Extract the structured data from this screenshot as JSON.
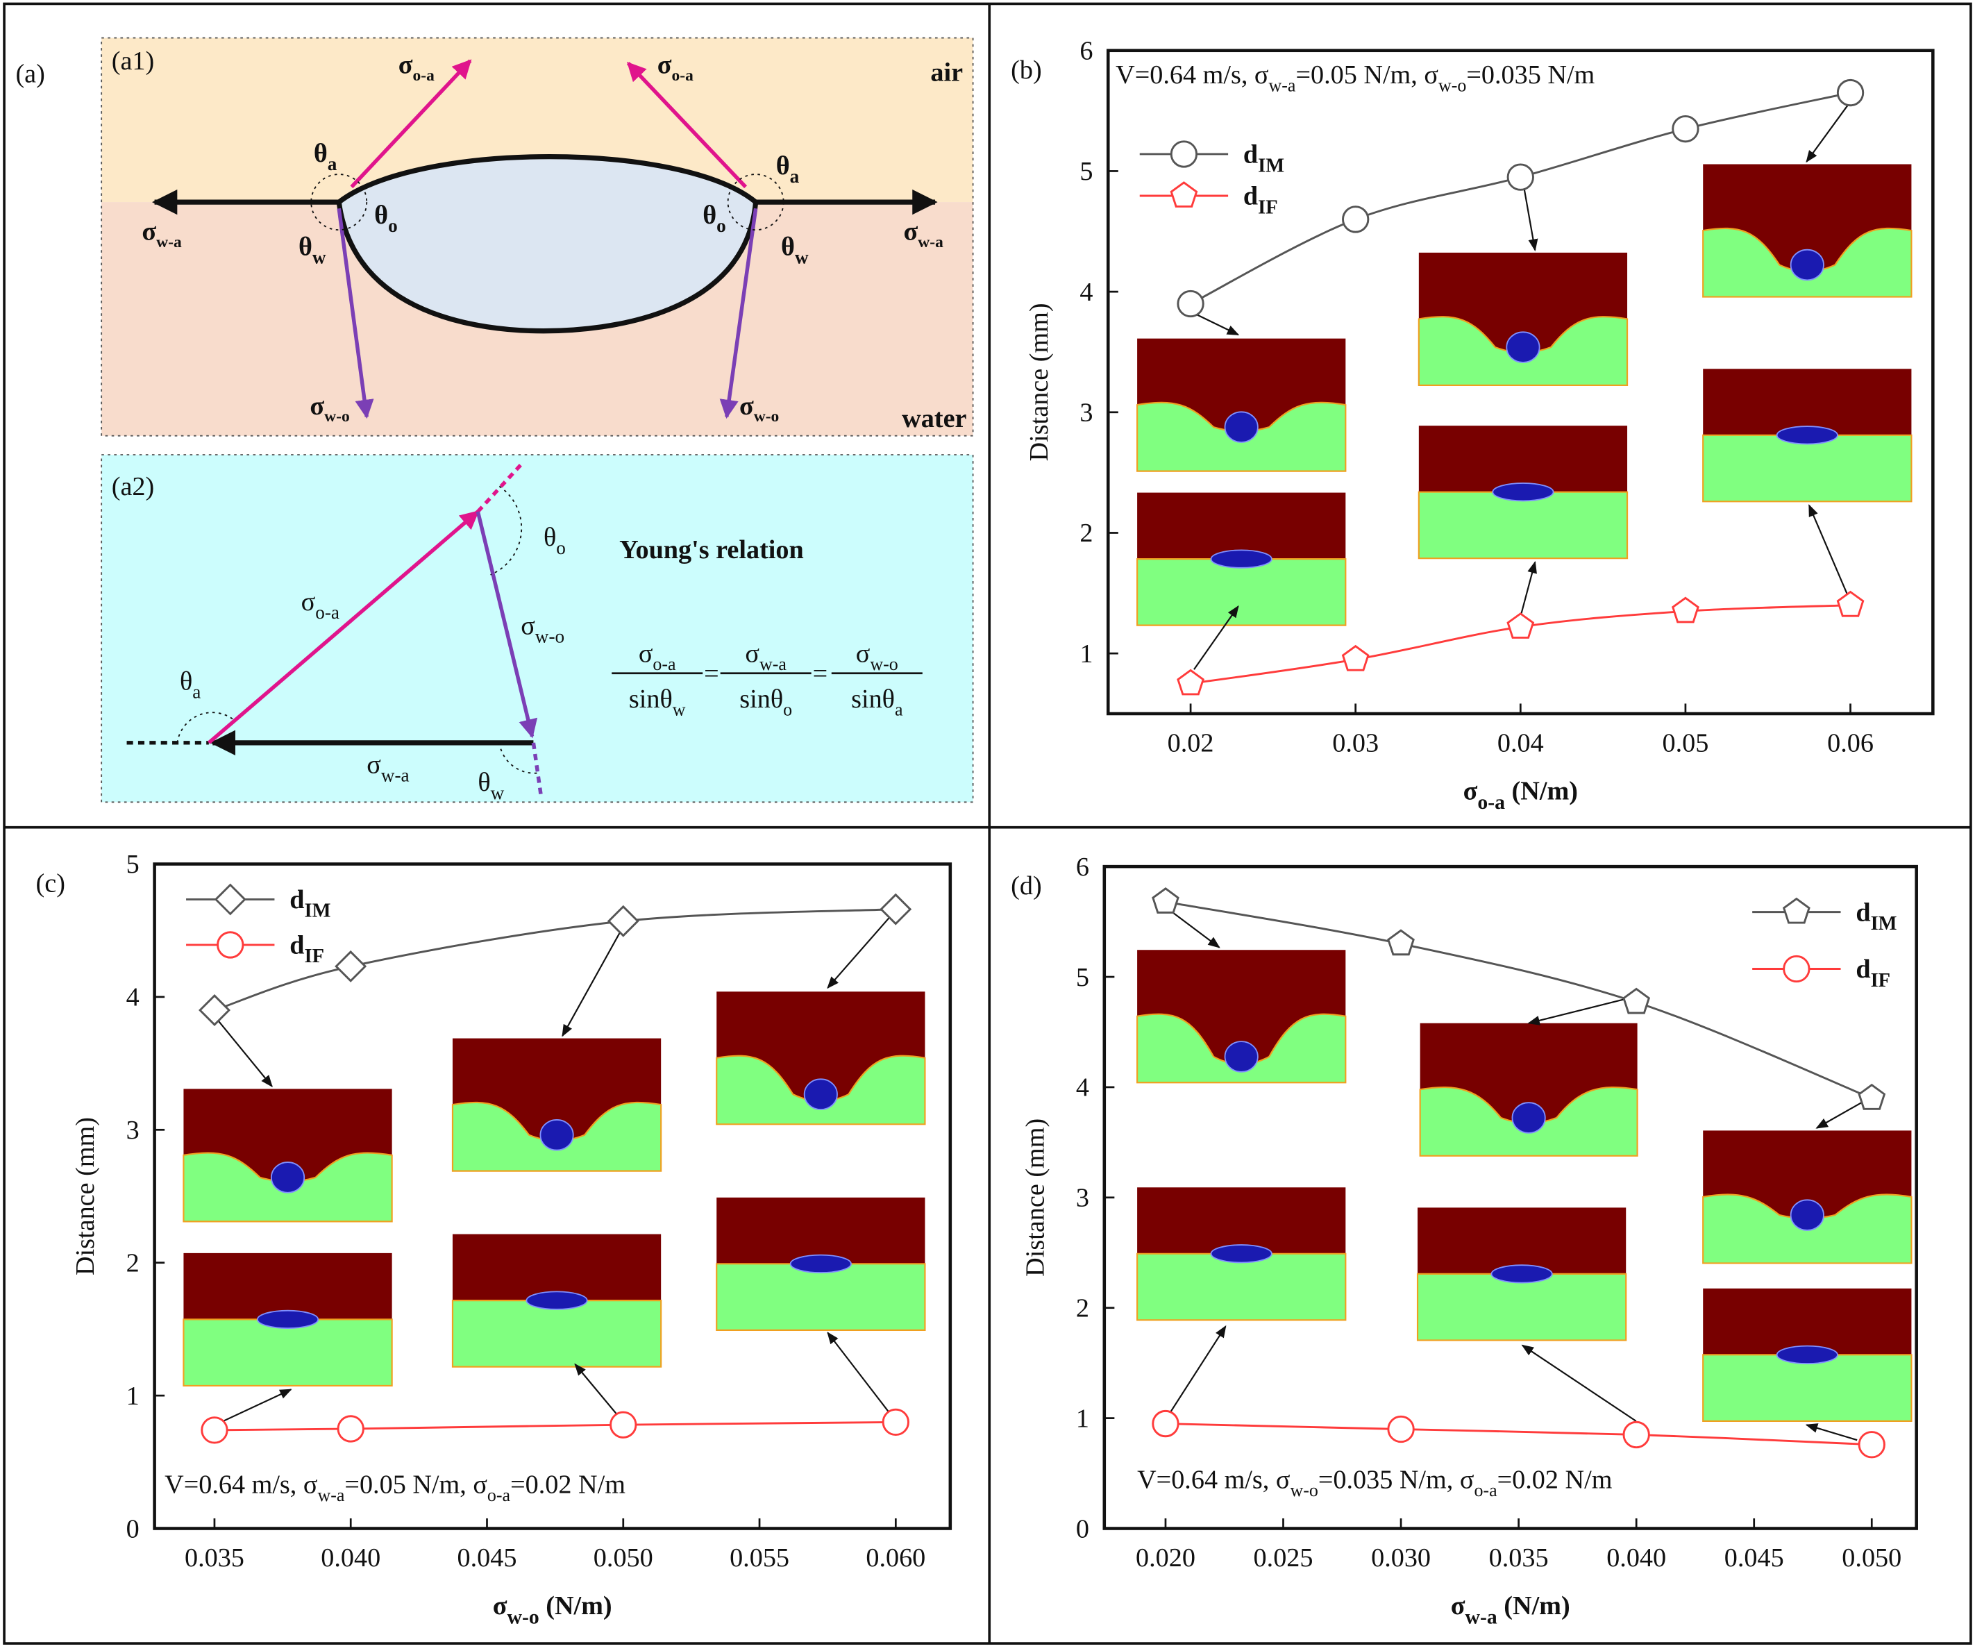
{
  "diagram": {
    "panel_label": "(a)",
    "sub1_label": "(a1)",
    "sub2_label": "(a2)",
    "air": "air",
    "water": "water",
    "labels": [
      {
        "base": "σ",
        "sub": "o-a"
      },
      {
        "base": "σ",
        "sub": "o-a"
      },
      {
        "base": "σ",
        "sub": "w-a"
      },
      {
        "base": "σ",
        "sub": "w-a"
      },
      {
        "base": "σ",
        "sub": "w-o"
      },
      {
        "base": "σ",
        "sub": "w-o"
      },
      {
        "base": "θ",
        "sub": "a"
      },
      {
        "base": "θ",
        "sub": "a"
      },
      {
        "base": "θ",
        "sub": "o"
      },
      {
        "base": "θ",
        "sub": "o"
      },
      {
        "base": "θ",
        "sub": "w"
      },
      {
        "base": "θ",
        "sub": "w"
      },
      {
        "base": "σ",
        "sub": "o-a"
      },
      {
        "base": "σ",
        "sub": "w-o"
      },
      {
        "base": "σ",
        "sub": "w-a"
      },
      {
        "base": "θ",
        "sub": "a"
      },
      {
        "base": "θ",
        "sub": "o"
      },
      {
        "base": "θ",
        "sub": "w"
      }
    ],
    "relation_title": "Young's relation",
    "formula": {
      "operator": "=",
      "terms": [
        {
          "num": {
            "base": "σ",
            "sub": "o-a"
          },
          "den": {
            "base": "sinθ",
            "sub": "w"
          }
        },
        {
          "num": {
            "base": "σ",
            "sub": "w-a"
          },
          "den": {
            "base": "sinθ",
            "sub": "o"
          }
        },
        {
          "num": {
            "base": "σ",
            "sub": "w-o"
          },
          "den": {
            "base": "sinθ",
            "sub": "a"
          }
        }
      ]
    }
  },
  "chart_data": [
    {
      "type": "line",
      "panel_label": "(b)",
      "x": [
        0.02,
        0.03,
        0.04,
        0.05,
        0.06
      ],
      "series": [
        {
          "name": "d",
          "name_sub": "IM",
          "color": "#555555",
          "marker": "circle",
          "values": [
            3.9,
            4.6,
            4.95,
            5.35,
            5.65
          ]
        },
        {
          "name": "d",
          "name_sub": "IF",
          "color": "#ff3b3b",
          "marker": "pentagon",
          "values": [
            0.75,
            0.95,
            1.22,
            1.35,
            1.4
          ]
        }
      ],
      "xlim": [
        0.015,
        0.065
      ],
      "ylim": [
        0.5,
        6
      ],
      "xticks": [
        0.02,
        0.03,
        0.04,
        0.05,
        0.06
      ],
      "yticks": [
        1,
        2,
        3,
        4,
        5,
        6
      ],
      "xlabel": {
        "base": "σ",
        "sub": "o-a",
        "text": " (N/m)"
      },
      "ylabel": "Distance (mm)",
      "legend": "upper left",
      "annotation": [
        {
          "text": "V=0.64 m/s, "
        },
        {
          "text": "σ"
        },
        {
          "text": "w-a",
          "sub": true
        },
        {
          "text": "=0.05 N/m, "
        },
        {
          "text": "σ"
        },
        {
          "text": "w-o",
          "sub": true
        },
        {
          "text": "=0.035 N/m"
        }
      ]
    },
    {
      "type": "line",
      "panel_label": "(c)",
      "x": [
        0.035,
        0.04,
        0.05,
        0.06
      ],
      "series": [
        {
          "name": "d",
          "name_sub": "IM",
          "color": "#555555",
          "marker": "diamond",
          "values": [
            3.9,
            4.23,
            4.57,
            4.66
          ]
        },
        {
          "name": "d",
          "name_sub": "IF",
          "color": "#ff3b3b",
          "marker": "circle",
          "values": [
            0.74,
            0.75,
            0.78,
            0.8
          ]
        }
      ],
      "xlim": [
        0.0328,
        0.062
      ],
      "ylim": [
        0,
        5
      ],
      "xticks": [
        0.035,
        {
          "value": 0.04,
          "label": "0.040"
        },
        0.045,
        {
          "value": 0.05,
          "label": "0.050"
        },
        0.055,
        {
          "value": 0.06,
          "label": "0.060"
        }
      ],
      "yticks": [
        0,
        1,
        2,
        3,
        4,
        5
      ],
      "xlabel": {
        "base": "σ",
        "sub": "w-o",
        "text": " (N/m)"
      },
      "ylabel": "Distance (mm)",
      "legend": "upper left",
      "annotation": [
        {
          "text": "V=0.64 m/s, "
        },
        {
          "text": "σ"
        },
        {
          "text": "w-a",
          "sub": true
        },
        {
          "text": "=0.05 N/m, "
        },
        {
          "text": "σ"
        },
        {
          "text": "o-a",
          "sub": true
        },
        {
          "text": "=0.02 N/m"
        }
      ]
    },
    {
      "type": "line",
      "panel_label": "(d)",
      "x": [
        0.02,
        0.03,
        0.04,
        0.05
      ],
      "series": [
        {
          "name": "d",
          "name_sub": "IM",
          "color": "#555555",
          "marker": "pentagon",
          "values": [
            5.68,
            5.3,
            4.77,
            3.9
          ]
        },
        {
          "name": "d",
          "name_sub": "IF",
          "color": "#ff3b3b",
          "marker": "circle",
          "values": [
            0.95,
            0.9,
            0.85,
            0.76
          ]
        }
      ],
      "xlim": [
        0.0174,
        0.0519
      ],
      "ylim": [
        0,
        6
      ],
      "xticks": [
        {
          "value": 0.02,
          "label": "0.020"
        },
        0.025,
        {
          "value": 0.03,
          "label": "0.030"
        },
        0.035,
        {
          "value": 0.04,
          "label": "0.040"
        },
        0.045,
        {
          "value": 0.05,
          "label": "0.050"
        }
      ],
      "yticks": [
        0,
        1,
        2,
        3,
        4,
        5,
        6
      ],
      "xlabel": {
        "base": "σ",
        "sub": "w-a",
        "text": " (N/m)"
      },
      "ylabel": "Distance (mm)",
      "legend": "upper right",
      "annotation": [
        {
          "text": "V=0.64 m/s, "
        },
        {
          "text": "σ"
        },
        {
          "text": "w-o",
          "sub": true
        },
        {
          "text": "=0.035 N/m, "
        },
        {
          "text": "σ"
        },
        {
          "text": "o-a",
          "sub": true
        },
        {
          "text": "=0.02 N/m"
        }
      ]
    }
  ]
}
